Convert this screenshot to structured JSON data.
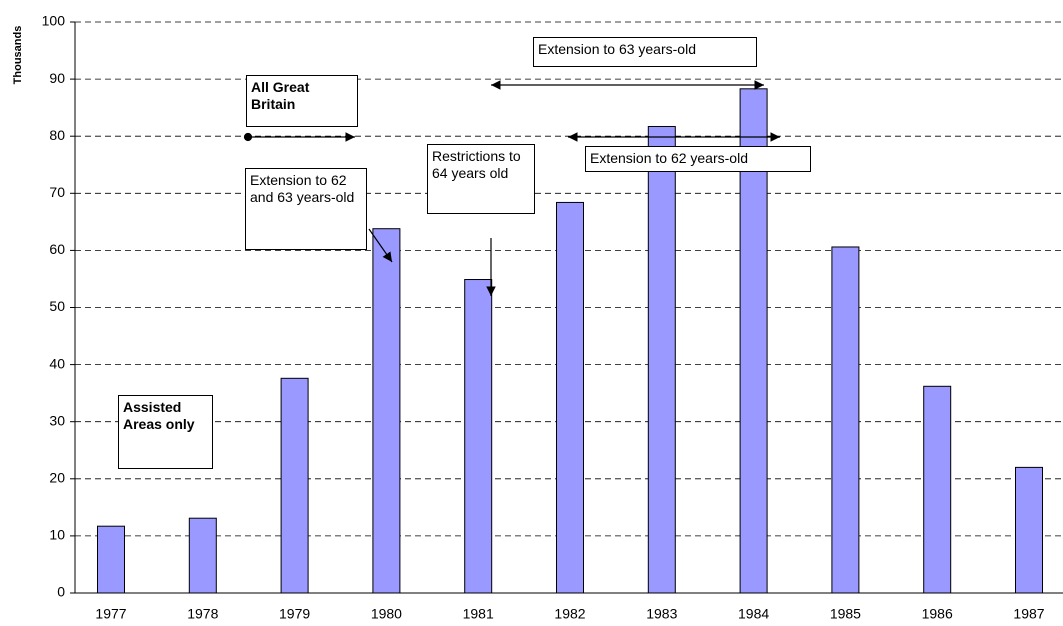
{
  "chart_data": {
    "type": "bar",
    "y_label": "Thousands",
    "categories": [
      "1977",
      "1978",
      "1979",
      "1980",
      "1981",
      "1982",
      "1983",
      "1984",
      "1985",
      "1986",
      "1987"
    ],
    "values": [
      11.7,
      13.1,
      37.6,
      63.8,
      54.9,
      68.4,
      81.7,
      88.3,
      60.6,
      36.2,
      22.0
    ],
    "color": "#9999ff",
    "ylim": [
      0,
      100
    ],
    "yticks": [
      0,
      10,
      20,
      30,
      40,
      50,
      60,
      70,
      80,
      90,
      100
    ],
    "grid": true,
    "annotations": [
      "All Great Britain",
      "Assisted Areas only",
      "Extension to 62 and 63 years-old",
      "Restrictions to 64 years old",
      "Extension to 63 years-old",
      "Extension to 62 years-old"
    ]
  }
}
